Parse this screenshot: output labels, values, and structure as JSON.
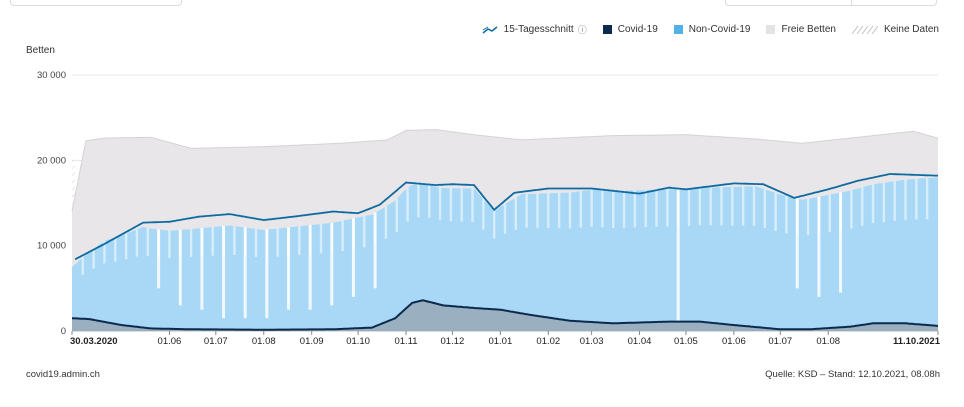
{
  "colors": {
    "covid": "#0b2a4d",
    "non_covid": "#a8d8f5",
    "free_beds": "#e8e6e8",
    "avg_line": "#0e6aa0",
    "no_data": "#cfcfcf"
  },
  "legend": {
    "avg_label": "15-Tagesschnitt",
    "info_icon": "ⓘ",
    "covid_label": "Covid-19",
    "non_covid_label": "Non-Covid-19",
    "free_label": "Freie Betten",
    "no_data_label": "Keine Daten"
  },
  "footer": {
    "source_site": "covid19.admin.ch",
    "source_note": "Quelle: KSD – Stand: 12.10.2021, 08.08h"
  },
  "chart_data": {
    "type": "area",
    "ylabel": "Betten",
    "ylim": [
      0,
      30000
    ],
    "yticks": [
      {
        "value": 0,
        "label": "0"
      },
      {
        "value": 10000,
        "label": "10 000"
      },
      {
        "value": 20000,
        "label": "20 000"
      },
      {
        "value": 30000,
        "label": "30 000"
      }
    ],
    "x_start": "2020-03-30",
    "x_end": "2021-10-11",
    "xticks": [
      {
        "date": "2020-03-30",
        "label": "30.03.2020",
        "bold": true
      },
      {
        "date": "2020-06-01",
        "label": "01.06"
      },
      {
        "date": "2020-07-01",
        "label": "01.07"
      },
      {
        "date": "2020-08-01",
        "label": "01.08"
      },
      {
        "date": "2020-09-01",
        "label": "01.09"
      },
      {
        "date": "2020-10-01",
        "label": "01.10"
      },
      {
        "date": "2020-11-01",
        "label": "01.11"
      },
      {
        "date": "2020-12-01",
        "label": "01.12"
      },
      {
        "date": "2021-01-01",
        "label": "01.01"
      },
      {
        "date": "2021-02-01",
        "label": "01.02"
      },
      {
        "date": "2021-03-01",
        "label": "01.03"
      },
      {
        "date": "2021-04-01",
        "label": "01.04"
      },
      {
        "date": "2021-05-01",
        "label": "01.05"
      },
      {
        "date": "2021-06-01",
        "label": "01.06"
      },
      {
        "date": "2021-07-01",
        "label": "01.07"
      },
      {
        "date": "2021-08-01",
        "label": "01.08"
      },
      {
        "date": "2021-10-11",
        "label": "11.10.2021",
        "bold": true
      }
    ],
    "no_data_until": "2020-04-01",
    "series": [
      {
        "name": "15-Tagesschnitt",
        "kind": "line",
        "points": [
          [
            "2020-04-01",
            8400
          ],
          [
            "2020-04-20",
            10200
          ],
          [
            "2020-05-15",
            12700
          ],
          [
            "2020-06-01",
            12800
          ],
          [
            "2020-06-20",
            13400
          ],
          [
            "2020-07-10",
            13700
          ],
          [
            "2020-08-01",
            13000
          ],
          [
            "2020-08-20",
            13400
          ],
          [
            "2020-09-15",
            14000
          ],
          [
            "2020-10-01",
            13800
          ],
          [
            "2020-10-15",
            14800
          ],
          [
            "2020-11-01",
            17400
          ],
          [
            "2020-11-20",
            17100
          ],
          [
            "2020-12-01",
            17200
          ],
          [
            "2020-12-15",
            17100
          ],
          [
            "2020-12-28",
            14200
          ],
          [
            "2021-01-10",
            16200
          ],
          [
            "2021-02-01",
            16700
          ],
          [
            "2021-03-01",
            16700
          ],
          [
            "2021-04-01",
            16100
          ],
          [
            "2021-04-20",
            16800
          ],
          [
            "2021-05-01",
            16600
          ],
          [
            "2021-06-01",
            17300
          ],
          [
            "2021-06-20",
            17200
          ],
          [
            "2021-07-10",
            15600
          ],
          [
            "2021-08-01",
            16600
          ],
          [
            "2021-08-20",
            17600
          ],
          [
            "2021-09-10",
            18400
          ],
          [
            "2021-10-11",
            18200
          ]
        ]
      },
      {
        "name": "Covid-19",
        "kind": "area",
        "points": [
          [
            "2020-03-30",
            1500
          ],
          [
            "2020-04-10",
            1400
          ],
          [
            "2020-05-01",
            700
          ],
          [
            "2020-05-20",
            300
          ],
          [
            "2020-06-15",
            200
          ],
          [
            "2020-08-01",
            150
          ],
          [
            "2020-09-15",
            200
          ],
          [
            "2020-10-10",
            400
          ],
          [
            "2020-10-25",
            1500
          ],
          [
            "2020-11-05",
            3300
          ],
          [
            "2020-11-12",
            3600
          ],
          [
            "2020-11-25",
            3000
          ],
          [
            "2020-12-15",
            2700
          ],
          [
            "2021-01-01",
            2500
          ],
          [
            "2021-01-20",
            1900
          ],
          [
            "2021-02-15",
            1200
          ],
          [
            "2021-03-15",
            900
          ],
          [
            "2021-04-20",
            1100
          ],
          [
            "2021-05-10",
            1100
          ],
          [
            "2021-06-01",
            700
          ],
          [
            "2021-07-01",
            200
          ],
          [
            "2021-07-20",
            200
          ],
          [
            "2021-08-15",
            500
          ],
          [
            "2021-08-30",
            900
          ],
          [
            "2021-09-20",
            900
          ],
          [
            "2021-10-11",
            600
          ]
        ]
      },
      {
        "name": "Non-Covid-19",
        "kind": "area",
        "points": [
          [
            "2020-03-30",
            6000
          ],
          [
            "2020-04-20",
            9500
          ],
          [
            "2020-05-15",
            11800
          ],
          [
            "2020-06-01",
            11500
          ],
          [
            "2020-07-10",
            12200
          ],
          [
            "2020-08-01",
            11700
          ],
          [
            "2020-09-15",
            12500
          ],
          [
            "2020-10-15",
            13400
          ],
          [
            "2020-10-31",
            14000
          ],
          [
            "2020-11-12",
            13600
          ],
          [
            "2020-12-15",
            14000
          ],
          [
            "2020-12-28",
            11500
          ],
          [
            "2021-01-15",
            14000
          ],
          [
            "2021-03-01",
            15500
          ],
          [
            "2021-05-01",
            15500
          ],
          [
            "2021-06-15",
            16500
          ],
          [
            "2021-07-15",
            15200
          ],
          [
            "2021-08-30",
            16300
          ],
          [
            "2021-10-11",
            17400
          ]
        ]
      },
      {
        "name": "Freie Betten",
        "kind": "area",
        "note_total_capacity": true,
        "points": [
          [
            "2020-03-30",
            14000
          ],
          [
            "2020-04-08",
            22300
          ],
          [
            "2020-04-20",
            22600
          ],
          [
            "2020-05-20",
            22700
          ],
          [
            "2020-06-15",
            21400
          ],
          [
            "2020-08-01",
            21600
          ],
          [
            "2020-09-20",
            22000
          ],
          [
            "2020-10-20",
            22400
          ],
          [
            "2020-11-01",
            23500
          ],
          [
            "2020-11-20",
            23600
          ],
          [
            "2020-12-15",
            23000
          ],
          [
            "2021-01-15",
            22400
          ],
          [
            "2021-03-15",
            22900
          ],
          [
            "2021-05-01",
            23000
          ],
          [
            "2021-06-15",
            22500
          ],
          [
            "2021-07-15",
            22000
          ],
          [
            "2021-08-20",
            22700
          ],
          [
            "2021-09-25",
            23400
          ],
          [
            "2021-10-11",
            22600
          ]
        ]
      }
    ],
    "dips": [
      {
        "date": "2020-05-25",
        "value": 5000
      },
      {
        "date": "2020-06-08",
        "value": 3000
      },
      {
        "date": "2020-06-22",
        "value": 2500
      },
      {
        "date": "2020-07-06",
        "value": 1500
      },
      {
        "date": "2020-07-20",
        "value": 1500
      },
      {
        "date": "2020-08-03",
        "value": 1500
      },
      {
        "date": "2020-08-17",
        "value": 2500
      },
      {
        "date": "2020-08-31",
        "value": 2500
      },
      {
        "date": "2020-09-14",
        "value": 3000
      },
      {
        "date": "2020-09-28",
        "value": 4000
      },
      {
        "date": "2020-10-12",
        "value": 5000
      },
      {
        "date": "2021-04-26",
        "value": 0
      },
      {
        "date": "2021-07-12",
        "value": 5000
      },
      {
        "date": "2021-07-26",
        "value": 4000
      },
      {
        "date": "2021-08-09",
        "value": 4500
      }
    ]
  }
}
